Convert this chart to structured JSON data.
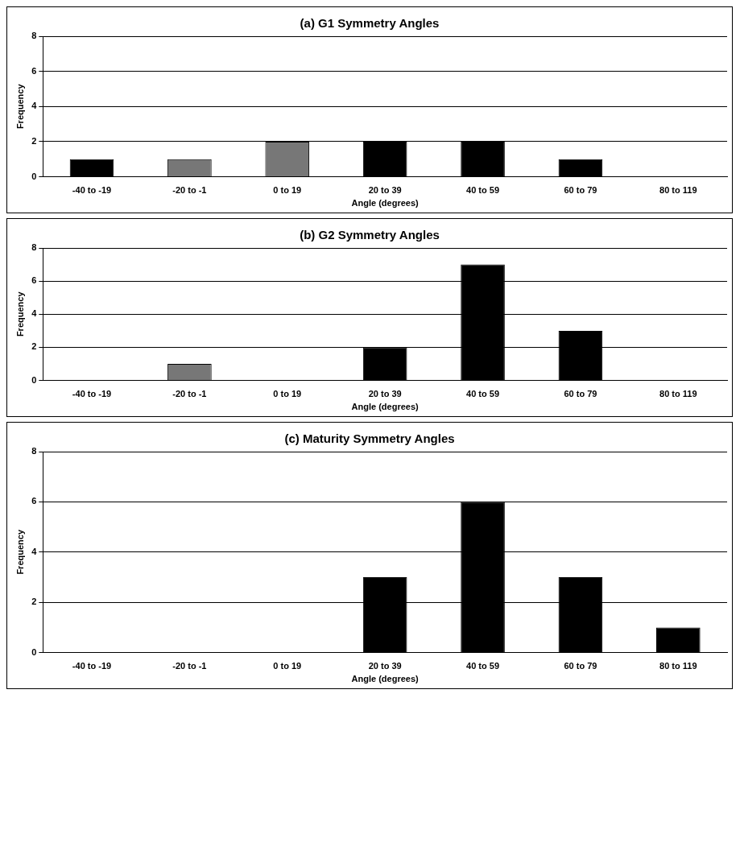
{
  "chart_data": [
    {
      "type": "bar",
      "title": "(a) G1 Symmetry Angles",
      "xlabel": "Angle (degrees)",
      "ylabel": "Frequency",
      "categories": [
        "-40 to -19",
        "-20 to -1",
        "0 to 19",
        "20 to 39",
        "40 to 59",
        "60 to 79",
        "80 to 119"
      ],
      "values": [
        1,
        1,
        2,
        2,
        2,
        1,
        0
      ],
      "colors": [
        "#000000",
        "#777777",
        "#777777",
        "#000000",
        "#000000",
        "#000000",
        "#000000"
      ],
      "ylim": [
        0,
        8
      ],
      "yticks": [
        0,
        2,
        4,
        6,
        8
      ],
      "grid": "y",
      "legend": false
    },
    {
      "type": "bar",
      "title": "(b) G2 Symmetry Angles",
      "xlabel": "Angle (degrees)",
      "ylabel": "Frequency",
      "categories": [
        "-40 to -19",
        "-20 to -1",
        "0 to 19",
        "20 to 39",
        "40 to 59",
        "60 to 79",
        "80 to 119"
      ],
      "values": [
        0,
        1,
        0,
        2,
        7,
        3,
        0
      ],
      "colors": [
        "#000000",
        "#777777",
        "#000000",
        "#000000",
        "#000000",
        "#000000",
        "#000000"
      ],
      "ylim": [
        0,
        8
      ],
      "yticks": [
        0,
        2,
        4,
        6,
        8
      ],
      "grid": "y",
      "legend": false
    },
    {
      "type": "bar",
      "title": "(c) Maturity Symmetry Angles",
      "xlabel": "Angle (degrees)",
      "ylabel": "Frequency",
      "categories": [
        "-40 to -19",
        "-20 to -1",
        "0 to 19",
        "20 to 39",
        "40 to 59",
        "60 to 79",
        "80 to 119"
      ],
      "values": [
        0,
        0,
        0,
        3,
        6,
        3,
        1
      ],
      "colors": [
        "#000000",
        "#000000",
        "#000000",
        "#000000",
        "#000000",
        "#000000",
        "#000000"
      ],
      "ylim": [
        0,
        8
      ],
      "yticks": [
        0,
        2,
        4,
        6,
        8
      ],
      "grid": "y",
      "legend": false
    }
  ]
}
